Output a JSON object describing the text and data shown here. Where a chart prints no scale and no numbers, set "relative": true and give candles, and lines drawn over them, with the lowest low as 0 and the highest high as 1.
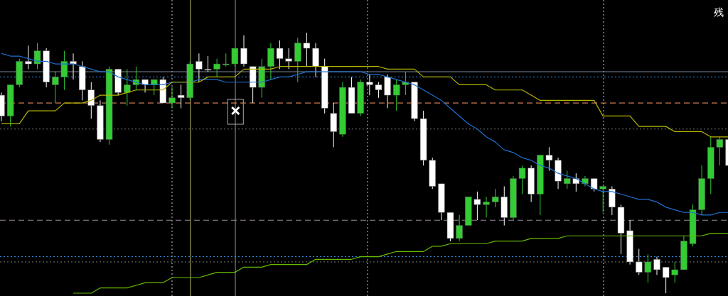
{
  "chart_data": {
    "type": "candlestick",
    "relative": true,
    "categories": [
      null,
      null,
      null,
      null,
      null,
      null,
      null,
      null,
      null,
      null,
      null,
      null,
      null,
      null,
      null,
      null,
      null,
      null,
      null,
      null,
      null,
      null,
      null,
      null,
      null,
      null,
      null,
      null,
      null,
      null,
      null,
      null,
      null,
      null,
      null,
      null,
      null,
      null,
      null,
      null,
      null,
      null,
      null,
      null,
      null,
      null,
      null,
      null,
      null,
      null,
      null,
      null,
      null,
      null,
      null,
      null,
      null,
      null,
      null,
      null,
      null,
      null,
      null,
      null,
      null,
      null,
      null,
      null,
      null,
      null,
      null,
      null,
      null,
      null,
      null,
      null,
      null,
      null,
      null,
      null,
      null,
      null
    ],
    "ohlc": [
      [
        0.76,
        0.77,
        0.66,
        0.68
      ],
      [
        0.68,
        0.8,
        0.64,
        0.8
      ],
      [
        0.8,
        0.9,
        0.79,
        0.89
      ],
      [
        0.89,
        0.95,
        0.86,
        0.88
      ],
      [
        0.88,
        0.96,
        0.86,
        0.93
      ],
      [
        0.93,
        0.94,
        0.79,
        0.81
      ],
      [
        0.8,
        0.85,
        0.73,
        0.83
      ],
      [
        0.83,
        0.93,
        0.78,
        0.89
      ],
      [
        0.89,
        0.92,
        0.82,
        0.88
      ],
      [
        0.87,
        0.89,
        0.74,
        0.78
      ],
      [
        0.78,
        0.81,
        0.67,
        0.72
      ],
      [
        0.72,
        0.74,
        0.58,
        0.59
      ],
      [
        0.59,
        0.87,
        0.57,
        0.86
      ],
      [
        0.86,
        0.86,
        0.76,
        0.77
      ],
      [
        0.77,
        0.86,
        0.72,
        0.8
      ],
      [
        0.8,
        0.87,
        0.78,
        0.82
      ],
      [
        0.82,
        0.82,
        0.77,
        0.8
      ],
      [
        0.8,
        0.82,
        0.76,
        0.82
      ],
      [
        0.82,
        0.83,
        0.73,
        0.73
      ],
      [
        0.73,
        0.79,
        0.71,
        0.75
      ],
      [
        0.76,
        0.8,
        0.71,
        0.75
      ],
      [
        0.75,
        0.89,
        0.74,
        0.88
      ],
      [
        0.89,
        0.92,
        0.81,
        0.86
      ],
      [
        0.86,
        0.91,
        0.85,
        0.86
      ],
      [
        0.86,
        0.9,
        0.83,
        0.88
      ],
      [
        0.88,
        0.92,
        0.87,
        0.88
      ],
      [
        0.88,
        0.94,
        0.87,
        0.94
      ],
      [
        0.94,
        0.99,
        0.87,
        0.88
      ],
      [
        0.87,
        0.87,
        0.73,
        0.79
      ],
      [
        0.79,
        0.9,
        0.75,
        0.87
      ],
      [
        0.87,
        0.96,
        0.82,
        0.94
      ],
      [
        0.94,
        0.97,
        0.86,
        0.9
      ],
      [
        0.9,
        0.94,
        0.86,
        0.89
      ],
      [
        0.89,
        0.98,
        0.81,
        0.96
      ],
      [
        0.96,
        1.0,
        0.87,
        0.94
      ],
      [
        0.94,
        0.96,
        0.83,
        0.87
      ],
      [
        0.87,
        0.9,
        0.69,
        0.71
      ],
      [
        0.69,
        0.73,
        0.56,
        0.62
      ],
      [
        0.61,
        0.81,
        0.6,
        0.79
      ],
      [
        0.79,
        0.83,
        0.69,
        0.69
      ],
      [
        0.69,
        0.82,
        0.68,
        0.81
      ],
      [
        0.81,
        0.84,
        0.76,
        0.8
      ],
      [
        0.8,
        0.81,
        0.75,
        0.78
      ],
      [
        0.83,
        0.84,
        0.71,
        0.76
      ],
      [
        0.76,
        0.82,
        0.7,
        0.8
      ],
      [
        0.8,
        0.85,
        0.76,
        0.81
      ],
      [
        0.81,
        0.81,
        0.66,
        0.67
      ],
      [
        0.67,
        0.7,
        0.49,
        0.51
      ],
      [
        0.51,
        0.52,
        0.4,
        0.41
      ],
      [
        0.42,
        0.42,
        0.28,
        0.31
      ],
      [
        0.31,
        0.31,
        0.2,
        0.21
      ],
      [
        0.21,
        0.3,
        0.2,
        0.26
      ],
      [
        0.26,
        0.37,
        0.26,
        0.37
      ],
      [
        0.36,
        0.39,
        0.28,
        0.34
      ],
      [
        0.34,
        0.37,
        0.29,
        0.35
      ],
      [
        0.35,
        0.4,
        0.33,
        0.37
      ],
      [
        0.37,
        0.41,
        0.26,
        0.29
      ],
      [
        0.29,
        0.45,
        0.28,
        0.44
      ],
      [
        0.44,
        0.49,
        0.38,
        0.48
      ],
      [
        0.48,
        0.49,
        0.35,
        0.38
      ],
      [
        0.38,
        0.53,
        0.3,
        0.53
      ],
      [
        0.53,
        0.56,
        0.47,
        0.51
      ],
      [
        0.51,
        0.52,
        0.4,
        0.43
      ],
      [
        0.42,
        0.47,
        0.4,
        0.44
      ],
      [
        0.44,
        0.46,
        0.39,
        0.42
      ],
      [
        0.42,
        0.45,
        0.41,
        0.44
      ],
      [
        0.44,
        0.44,
        0.39,
        0.4
      ],
      [
        0.4,
        0.41,
        0.31,
        0.41
      ],
      [
        0.4,
        0.41,
        0.3,
        0.33
      ],
      [
        0.33,
        0.34,
        0.15,
        0.23
      ],
      [
        0.24,
        0.28,
        0.11,
        0.12
      ],
      [
        0.12,
        0.17,
        0.07,
        0.08
      ],
      [
        0.08,
        0.15,
        0.04,
        0.12
      ],
      [
        0.13,
        0.14,
        0.07,
        0.09
      ],
      [
        0.1,
        0.1,
        0.0,
        0.06
      ],
      [
        0.07,
        0.12,
        0.04,
        0.09
      ],
      [
        0.09,
        0.22,
        0.09,
        0.2
      ],
      [
        0.19,
        0.34,
        0.18,
        0.32
      ],
      [
        0.32,
        0.49,
        0.3,
        0.44
      ],
      [
        0.44,
        0.6,
        0.38,
        0.56
      ],
      [
        0.56,
        0.6,
        0.49,
        0.59
      ],
      [
        0.59,
        0.59,
        0.49,
        0.49
      ]
    ],
    "colors": [
      "#ffffff",
      "#33cc33",
      "#33cc33",
      "#ffffff",
      "#33cc33",
      "#ffffff",
      "#33cc33",
      "#33cc33",
      "#ffffff",
      "#ffffff",
      "#ffffff",
      "#ffffff",
      "#33cc33",
      "#ffffff",
      "#33cc33",
      "#33cc33",
      "#ffffff",
      "#33cc33",
      "#ffffff",
      "#33cc33",
      "#ffffff",
      "#33cc33",
      "#ffffff",
      "#ffffff",
      "#33cc33",
      "#33cc33",
      "#33cc33",
      "#ffffff",
      "#ffffff",
      "#33cc33",
      "#33cc33",
      "#ffffff",
      "#ffffff",
      "#33cc33",
      "#ffffff",
      "#ffffff",
      "#ffffff",
      "#ffffff",
      "#33cc33",
      "#ffffff",
      "#33cc33",
      "#ffffff",
      "#ffffff",
      "#ffffff",
      "#33cc33",
      "#33cc33",
      "#ffffff",
      "#ffffff",
      "#ffffff",
      "#ffffff",
      "#ffffff",
      "#33cc33",
      "#33cc33",
      "#ffffff",
      "#33cc33",
      "#33cc33",
      "#ffffff",
      "#33cc33",
      "#33cc33",
      "#ffffff",
      "#33cc33",
      "#ffffff",
      "#ffffff",
      "#33cc33",
      "#ffffff",
      "#33cc33",
      "#ffffff",
      "#33cc33",
      "#ffffff",
      "#ffffff",
      "#ffffff",
      "#ffffff",
      "#33cc33",
      "#ffffff",
      "#ffffff",
      "#33cc33",
      "#33cc33",
      "#33cc33",
      "#33cc33",
      "#33cc33",
      "#33cc33",
      "#ffffff"
    ],
    "series": [
      {
        "type": "line",
        "color": "#1f6fd0",
        "values": [
          0.92,
          0.91,
          0.91,
          0.9,
          0.89,
          0.89,
          0.88,
          0.88,
          0.88,
          0.87,
          0.86,
          0.85,
          0.85,
          0.83,
          0.82,
          0.81,
          0.8,
          0.8,
          0.8,
          0.81,
          0.81,
          0.81,
          0.82,
          0.82,
          0.82,
          0.81,
          0.81,
          0.81,
          0.81,
          0.81,
          0.82,
          0.83,
          0.83,
          0.84,
          0.85,
          0.85,
          0.85,
          0.85,
          0.85,
          0.85,
          0.85,
          0.84,
          0.84,
          0.83,
          0.82,
          0.81,
          0.8,
          0.78,
          0.76,
          0.74,
          0.71,
          0.68,
          0.65,
          0.63,
          0.6,
          0.58,
          0.55,
          0.54,
          0.52,
          0.51,
          0.49,
          0.48,
          0.46,
          0.45,
          0.44,
          0.42,
          0.4,
          0.39,
          0.39,
          0.38,
          0.37,
          0.36,
          0.36,
          0.35,
          0.33,
          0.32,
          0.31,
          0.31,
          0.3,
          0.3,
          0.31,
          0.31
        ]
      },
      {
        "type": "line",
        "color": "#b5b500",
        "values": [
          0.65,
          0.65,
          0.65,
          0.7,
          0.7,
          0.7,
          0.7,
          0.73,
          0.73,
          0.73,
          0.74,
          0.76,
          0.76,
          0.76,
          0.77,
          0.78,
          0.78,
          0.78,
          0.78,
          0.81,
          0.81,
          0.81,
          0.81,
          0.83,
          0.83,
          0.83,
          0.83,
          0.86,
          0.86,
          0.86,
          0.86,
          0.87,
          0.87,
          0.87,
          0.87,
          0.87,
          0.87,
          0.87,
          0.87,
          0.87,
          0.87,
          0.87,
          0.87,
          0.86,
          0.86,
          0.86,
          0.86,
          0.83,
          0.83,
          0.83,
          0.83,
          0.8,
          0.8,
          0.8,
          0.8,
          0.78,
          0.78,
          0.78,
          0.78,
          0.76,
          0.74,
          0.74,
          0.74,
          0.74,
          0.74,
          0.74,
          0.74,
          0.68,
          0.68,
          0.68,
          0.68,
          0.64,
          0.64,
          0.64,
          0.64,
          0.62,
          0.62,
          0.62,
          0.62,
          0.6,
          0.6,
          0.6
        ]
      },
      {
        "type": "line",
        "color": "#66bb00",
        "values": [
          null,
          null,
          null,
          null,
          null,
          null,
          null,
          null,
          0.0,
          0.0,
          0.0,
          0.02,
          0.02,
          0.02,
          0.02,
          0.03,
          0.04,
          0.04,
          0.04,
          0.06,
          0.06,
          0.06,
          0.06,
          0.07,
          0.08,
          0.08,
          0.08,
          0.1,
          0.1,
          0.1,
          0.11,
          0.11,
          0.11,
          0.11,
          0.11,
          0.13,
          0.13,
          0.13,
          0.13,
          0.13,
          0.14,
          0.14,
          0.14,
          0.15,
          0.16,
          0.16,
          0.16,
          0.16,
          0.18,
          0.18,
          0.19,
          0.19,
          0.19,
          0.19,
          0.19,
          0.2,
          0.2,
          0.2,
          0.2,
          0.21,
          0.21,
          0.21,
          0.21,
          0.22,
          0.22,
          0.22,
          0.22,
          0.22,
          0.22,
          0.22,
          0.22,
          0.22,
          0.22,
          0.22,
          0.22,
          0.22,
          0.22,
          0.22,
          0.22,
          0.23,
          0.23,
          0.23
        ]
      }
    ],
    "ref_lines": [
      {
        "axis": "y",
        "value": 0.85,
        "color": "#7f8c99",
        "line_style": "solid"
      },
      {
        "axis": "y",
        "value": 0.83,
        "color": "#3399ff",
        "line_style": "dotted"
      },
      {
        "axis": "y",
        "value": 0.73,
        "color": "#ff9966",
        "line_style": "dashed"
      },
      {
        "axis": "y",
        "value": 0.63,
        "color": "#777777",
        "line_style": "dotted"
      },
      {
        "axis": "y",
        "value": 0.28,
        "color": "#9a8a9a",
        "line_style": "dashed"
      },
      {
        "axis": "y",
        "value": 0.14,
        "color": "#3399ff",
        "line_style": "dotted"
      },
      {
        "axis": "y",
        "value": 0.12,
        "color": "#777777",
        "line_style": "dotted"
      }
    ],
    "annotations": [
      "残"
    ]
  }
}
